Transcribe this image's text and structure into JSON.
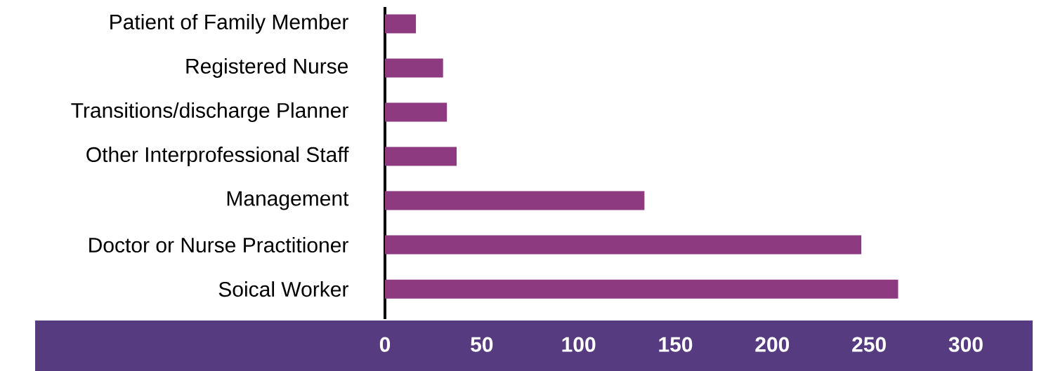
{
  "chart_data": {
    "type": "bar",
    "orientation": "horizontal",
    "categories": [
      "Patient of Family Member",
      "Registered Nurse",
      "Transitions/discharge Planner",
      "Other Interprofessional Staff",
      "Management",
      "Doctor or Nurse Practitioner",
      "Soical Worker"
    ],
    "values": [
      16,
      30,
      32,
      37,
      134,
      246,
      265
    ],
    "color": "#8e3a80",
    "xlim": [
      0,
      300
    ],
    "xticks": [
      0,
      50,
      100,
      150,
      200,
      250,
      300
    ]
  }
}
